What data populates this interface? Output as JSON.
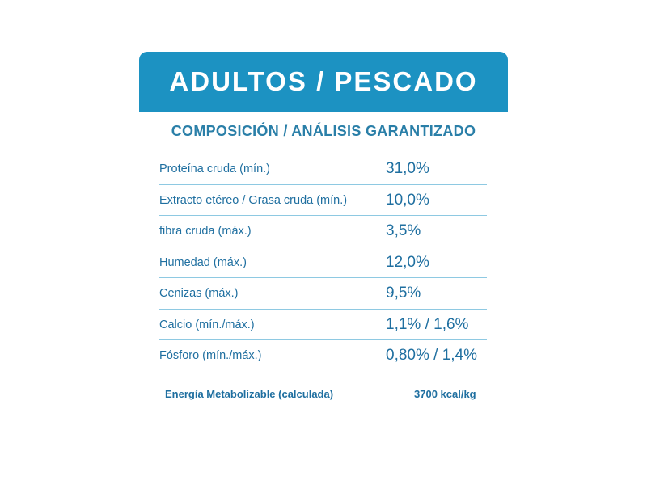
{
  "header": {
    "title": "ADULTOS / PESCADO"
  },
  "section": {
    "subtitle": "COMPOSICIÓN / ANÁLISIS GARANTIZADO"
  },
  "rows": [
    {
      "label": "Proteína cruda (mín.)",
      "value": "31,0%"
    },
    {
      "label": "Extracto etéreo / Grasa cruda (mín.)",
      "value": "10,0%"
    },
    {
      "label": "fibra cruda (máx.)",
      "value": "3,5%"
    },
    {
      "label": "Humedad (máx.)",
      "value": "12,0%"
    },
    {
      "label": "Cenizas (máx.)",
      "value": "9,5%"
    },
    {
      "label": "Calcio (mín./máx.)",
      "value": "1,1% / 1,6%"
    },
    {
      "label": "Fósforo (mín./máx.)",
      "value": "0,80% / 1,4%"
    }
  ],
  "energy": {
    "label": "Energía Metabolizable (calculada)",
    "value": "3700 kcal/kg"
  },
  "colors": {
    "header_bg": "#1c92c2",
    "text": "#1f6fa0",
    "divider": "#8ec9e2"
  }
}
